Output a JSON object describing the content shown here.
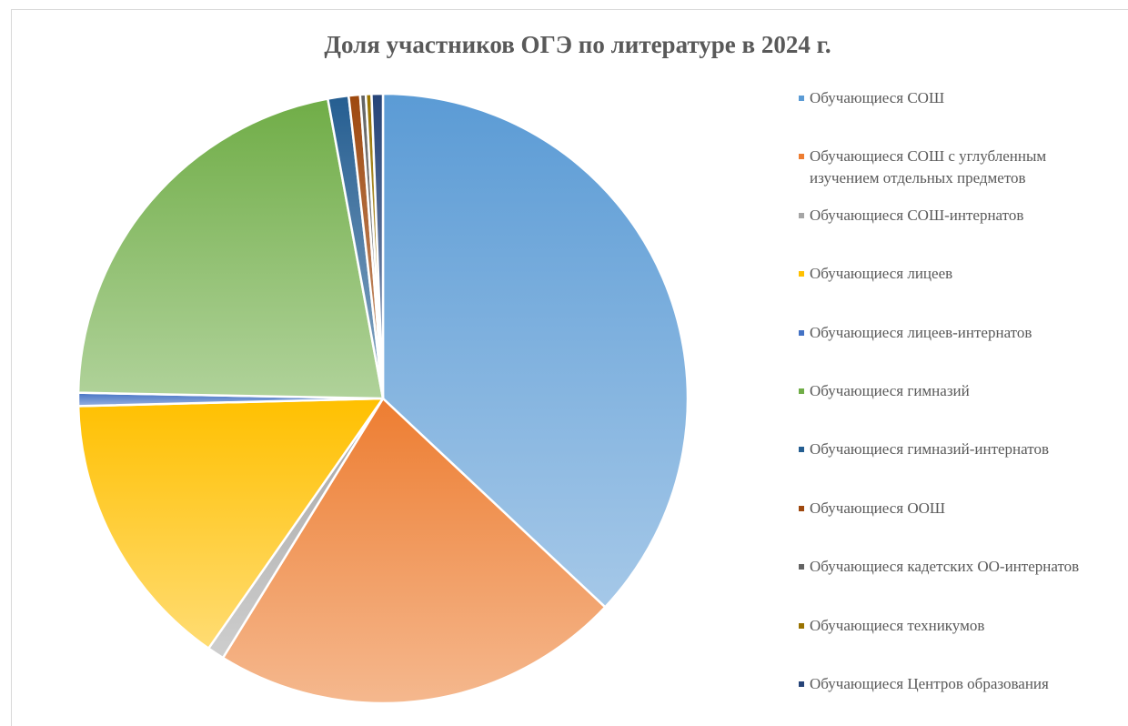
{
  "chart_data": {
    "type": "pie",
    "title": "Доля участников  ОГЭ по литературе  в 2024 г.",
    "categories": [
      "Обучающиеся СОШ",
      "Обучающиеся СОШ с углубленным изучением отдельных предметов",
      "Обучающиеся СОШ-интернатов",
      "Обучающиеся лицеев",
      "Обучающиеся лицеев-интернатов",
      "Обучающиеся гимназий",
      "Обучающиеся гимназий-интернатов",
      "Обучающиеся ООШ",
      "Обучающиеся кадетских ОО-интернатов",
      "Обучающиеся техникумов",
      "Обучающиеся Центров образования"
    ],
    "values": [
      37.0,
      21.8,
      0.9,
      14.9,
      0.7,
      21.8,
      1.1,
      0.6,
      0.3,
      0.3,
      0.6
    ],
    "colors": [
      "#5b9bd5",
      "#ed7d31",
      "#a5a5a5",
      "#ffc000",
      "#4472c4",
      "#70ad47",
      "#255e91",
      "#9e480e",
      "#636363",
      "#997300",
      "#264478"
    ],
    "legend": "right"
  }
}
